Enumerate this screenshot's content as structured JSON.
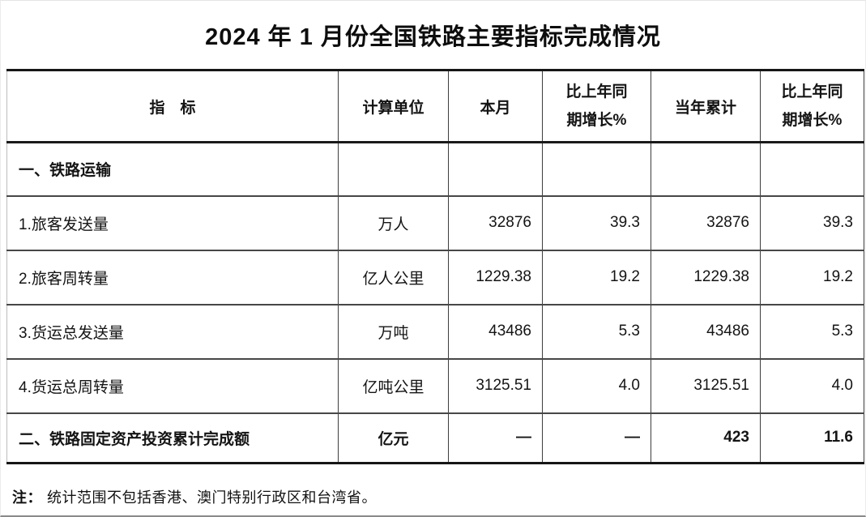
{
  "page": {
    "title": "2024 年 1 月份全国铁路主要指标完成情况",
    "note": {
      "prefix": "注：",
      "text": "统计范围不包括香港、澳门特别行政区和台湾省。"
    }
  },
  "table": {
    "headers": {
      "indicator": "指　标",
      "unit": "计算单位",
      "month": "本月",
      "month_growth": "比上年同期增长%",
      "ytd": "当年累计",
      "ytd_growth": "比上年同期增长%"
    },
    "rows": [
      {
        "indicator": "一、铁路运输",
        "unit": "",
        "month": "",
        "month_growth": "",
        "ytd": "",
        "ytd_growth": ""
      },
      {
        "indicator": "1.旅客发送量",
        "unit": "万人",
        "month": "32876",
        "month_growth": "39.3",
        "ytd": "32876",
        "ytd_growth": "39.3"
      },
      {
        "indicator": "2.旅客周转量",
        "unit": "亿人公里",
        "month": "1229.38",
        "month_growth": "19.2",
        "ytd": "1229.38",
        "ytd_growth": "19.2"
      },
      {
        "indicator": "3.货运总发送量",
        "unit": "万吨",
        "month": "43486",
        "month_growth": "5.3",
        "ytd": "43486",
        "ytd_growth": "5.3"
      },
      {
        "indicator": "4.货运总周转量",
        "unit": "亿吨公里",
        "month": "3125.51",
        "month_growth": "4.0",
        "ytd": "3125.51",
        "ytd_growth": "4.0"
      },
      {
        "indicator": "二、铁路固定资产投资累计完成额",
        "unit": "亿元",
        "month": "—",
        "month_growth": "—",
        "ytd": "423",
        "ytd_growth": "11.6"
      }
    ]
  }
}
